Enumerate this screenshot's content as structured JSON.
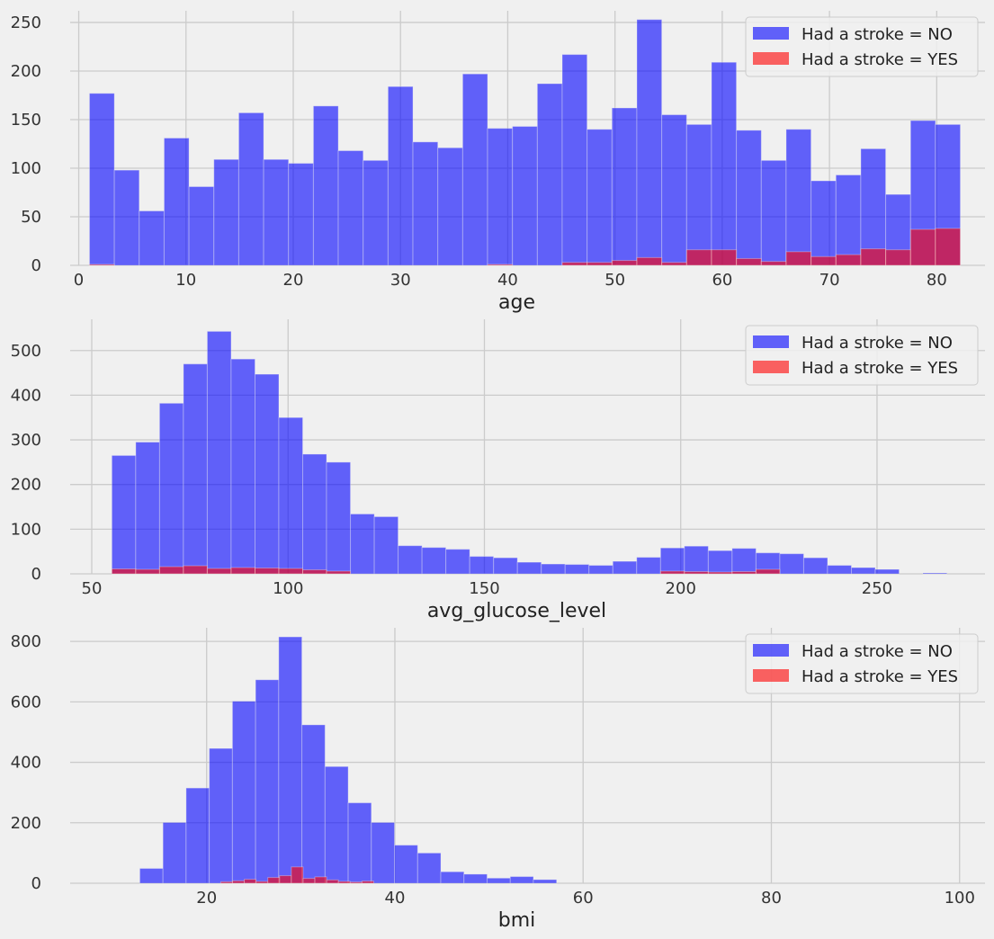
{
  "style": {
    "background": "#f0f0f0",
    "grid_color": "#cbcbcb",
    "no_color": "#0000ff",
    "yes_color": "#ff0000",
    "bar_opacity": 0.6
  },
  "chart_data": [
    {
      "type": "bar",
      "xlabel": "age",
      "ylabel": "",
      "xlim": [
        -0.8,
        84.5
      ],
      "ylim": [
        0,
        262
      ],
      "xticks": [
        0,
        10,
        20,
        30,
        40,
        50,
        60,
        70,
        80
      ],
      "yticks": [
        0,
        50,
        100,
        150,
        200,
        250
      ],
      "grid": true,
      "legend_position": "top-right",
      "bin_edges": [
        1.0,
        3.32,
        5.64,
        7.96,
        10.28,
        12.6,
        14.92,
        17.24,
        19.56,
        21.88,
        24.2,
        26.52,
        28.84,
        31.16,
        33.48,
        35.8,
        38.12,
        40.44,
        42.76,
        45.08,
        47.4,
        49.72,
        52.04,
        54.36,
        56.68,
        59.0,
        61.32,
        63.64,
        65.96,
        68.28,
        70.6,
        72.92,
        75.24,
        77.56,
        79.88,
        82.2
      ],
      "series": [
        {
          "name": "Had a stroke = NO",
          "values": [
            177,
            98,
            56,
            131,
            81,
            109,
            157,
            109,
            105,
            164,
            118,
            108,
            184,
            127,
            121,
            197,
            141,
            143,
            187,
            217,
            140,
            162,
            253,
            155,
            145,
            209,
            139,
            108,
            140,
            87,
            93,
            120,
            73,
            149,
            145
          ]
        },
        {
          "name": "Had a stroke = YES",
          "values": [
            1,
            0,
            0,
            0,
            0,
            0,
            0,
            0,
            0,
            0,
            0,
            0,
            0,
            0,
            0,
            0,
            1,
            0,
            0,
            3,
            3,
            5,
            8,
            3,
            16,
            16,
            7,
            4,
            14,
            9,
            11,
            17,
            16,
            37,
            38
          ]
        }
      ]
    },
    {
      "type": "bar",
      "xlabel": "avg_glucose_level",
      "ylabel": "",
      "xlim": [
        44.5,
        277.5
      ],
      "ylim": [
        0,
        570
      ],
      "xticks": [
        50,
        100,
        150,
        200,
        250
      ],
      "yticks": [
        0,
        100,
        200,
        300,
        400,
        500
      ],
      "grid": true,
      "legend_position": "top-right",
      "bin_edges": [
        55.12,
        61.2,
        67.27,
        73.35,
        79.42,
        85.5,
        91.58,
        97.65,
        103.73,
        109.8,
        115.88,
        121.96,
        128.03,
        134.11,
        140.18,
        146.26,
        152.34,
        158.41,
        164.49,
        170.56,
        176.64,
        182.72,
        188.79,
        194.87,
        200.94,
        207.02,
        213.1,
        219.17,
        225.25,
        231.32,
        237.4,
        243.48,
        249.55,
        255.63,
        261.7,
        267.78
      ],
      "series": [
        {
          "name": "Had a stroke = NO",
          "values": [
            265,
            295,
            382,
            470,
            543,
            481,
            447,
            350,
            268,
            250,
            134,
            128,
            63,
            59,
            55,
            39,
            36,
            26,
            22,
            21,
            19,
            28,
            37,
            58,
            62,
            52,
            57,
            47,
            45,
            36,
            19,
            14,
            10,
            0,
            2
          ]
        },
        {
          "name": "Had a stroke = YES",
          "values": [
            11,
            10,
            16,
            18,
            12,
            14,
            13,
            12,
            9,
            6,
            0,
            0,
            0,
            0,
            0,
            0,
            0,
            0,
            0,
            0,
            0,
            0,
            0,
            6,
            5,
            4,
            5,
            10,
            0,
            0,
            0,
            0,
            0,
            0,
            0
          ]
        }
      ]
    },
    {
      "type": "bar",
      "xlabel": "bmi",
      "ylabel": "",
      "xlim": [
        5.5,
        102.7
      ],
      "ylim": [
        0,
        845
      ],
      "xticks": [
        20,
        40,
        60,
        80,
        100
      ],
      "yticks": [
        0,
        200,
        400,
        600,
        800
      ],
      "grid": true,
      "legend_position": "top-right",
      "bin_edges": [
        12.9,
        15.36,
        17.82,
        20.28,
        22.74,
        25.2,
        27.66,
        30.12,
        32.58,
        35.04,
        37.5,
        39.96,
        42.42,
        44.88,
        47.34,
        49.8,
        52.26,
        54.72,
        57.18
      ],
      "series": [
        {
          "name": "Had a stroke = NO",
          "values": [
            49,
            201,
            315,
            446,
            602,
            673,
            815,
            524,
            386,
            266,
            201,
            126,
            100,
            38,
            30,
            17,
            22,
            12
          ]
        }
      ],
      "yes_bin_edges": [
        21.5,
        22.75,
        24.0,
        25.25,
        26.5,
        27.75,
        29.0,
        30.25,
        31.5,
        32.75,
        34.0,
        35.25,
        36.5,
        37.75
      ],
      "yes_series": {
        "name": "Had a stroke = YES",
        "values": [
          5,
          8,
          13,
          6,
          19,
          25,
          54,
          16,
          21,
          11,
          6,
          4,
          7
        ]
      }
    }
  ]
}
